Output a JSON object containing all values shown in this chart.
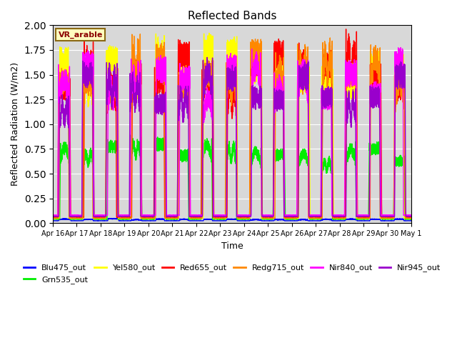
{
  "title": "Reflected Bands",
  "xlabel": "Time",
  "ylabel": "Reflected Radiation (W/m2)",
  "annotation": "VR_arable",
  "ylim": [
    0,
    2.0
  ],
  "background_color": "#d8d8d8",
  "series_order": [
    "Blu475_out",
    "Grn535_out",
    "Yel580_out",
    "Red655_out",
    "Redg715_out",
    "Nir840_out",
    "Nir945_out"
  ],
  "series": {
    "Blu475_out": {
      "color": "#0000ff",
      "lw": 1.0,
      "peak": 0.05,
      "base": 0.025
    },
    "Grn535_out": {
      "color": "#00ee00",
      "lw": 1.0,
      "peak": 0.9,
      "base": 0.04
    },
    "Yel580_out": {
      "color": "#ffff00",
      "lw": 1.0,
      "peak": 1.92,
      "base": 0.05
    },
    "Red655_out": {
      "color": "#ff0000",
      "lw": 1.0,
      "peak": 1.95,
      "base": 0.06
    },
    "Redg715_out": {
      "color": "#ff8800",
      "lw": 1.0,
      "peak": 1.9,
      "base": 0.05
    },
    "Nir840_out": {
      "color": "#ff00ff",
      "lw": 1.0,
      "peak": 1.8,
      "base": 0.08
    },
    "Nir945_out": {
      "color": "#9900cc",
      "lw": 1.0,
      "peak": 1.7,
      "base": 0.07
    }
  },
  "xtick_labels": [
    "Apr 16",
    "Apr 17",
    "Apr 18",
    "Apr 19",
    "Apr 20",
    "Apr 21",
    "Apr 22",
    "Apr 23",
    "Apr 24",
    "Apr 25",
    "Apr 26",
    "Apr 27",
    "Apr 28",
    "Apr 29",
    "Apr 30",
    "May 1"
  ],
  "n_days": 15,
  "points_per_day": 288,
  "legend_order": [
    "Blu475_out",
    "Grn535_out",
    "Yel580_out",
    "Red655_out",
    "Redg715_out",
    "Nir840_out",
    "Nir945_out"
  ]
}
